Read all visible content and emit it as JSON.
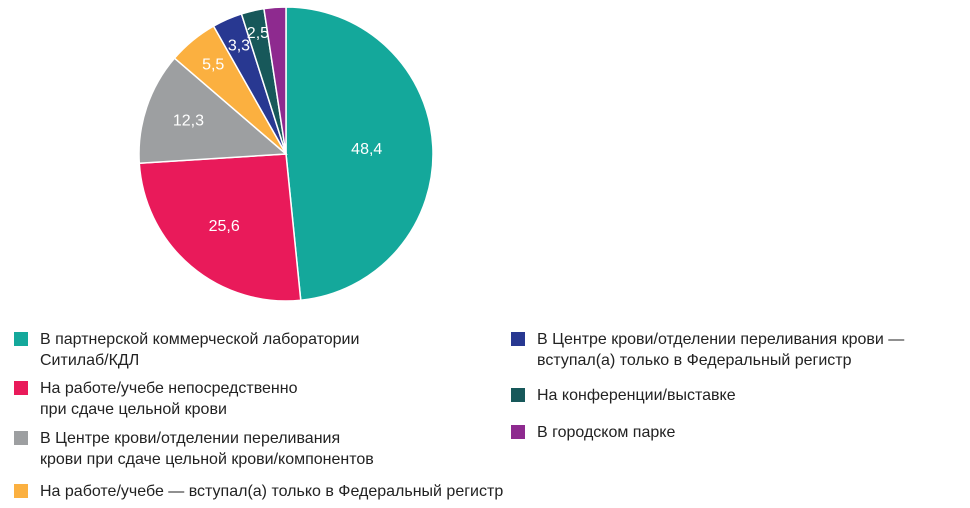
{
  "chart_data": {
    "type": "pie",
    "values": [
      48.4,
      25.6,
      12.3,
      5.5,
      3.3,
      2.5,
      2.4
    ],
    "data_labels": [
      "48,4",
      "25,6",
      "12,3",
      "5,5",
      "3,3",
      "2,5",
      ""
    ],
    "legend": [
      "В партнерской коммерческой лаборатории Ситилаб/КДЛ",
      "На работе/учебе непосредственно при сдаче цельной крови",
      "В Центре крови/отделении переливания крови при сдаче цельной крови/компонентов",
      "На работе/учебе — вступал(а) только в Федеральный регистр",
      "В Центре крови/отделении переливания крови — вступал(а) только в Федеральный регистр",
      "На конференции/выставке",
      "В городском парке"
    ],
    "legend_lines": [
      [
        "В партнерской коммерческой лаборатории",
        "Ситилаб/КДЛ"
      ],
      [
        "На работе/учебе непосредственно",
        "при сдаче цельной крови"
      ],
      [
        "В Центре крови/отделении переливания",
        "крови при сдаче цельной крови/компонентов"
      ],
      [
        "На работе/учебе — вступал(а) только в Федеральный регистр"
      ],
      [
        "В Центре крови/отделении переливания крови —",
        "вступал(а) только в Федеральный регистр"
      ],
      [
        "На конференции/выставке"
      ],
      [
        "В городском парке"
      ]
    ],
    "colors": [
      "#14a89b",
      "#e91a5a",
      "#9d9fa1",
      "#fbb040",
      "#283891",
      "#17585a",
      "#8e2a8f"
    ],
    "legend_placement": "bottom"
  }
}
